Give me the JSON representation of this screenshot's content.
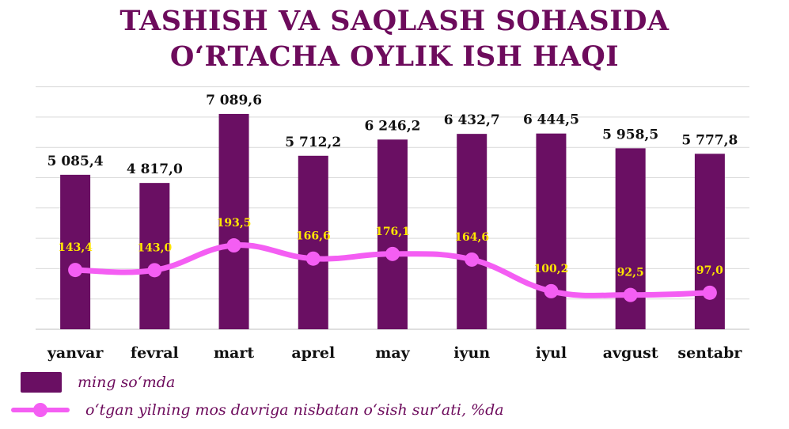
{
  "title_line1": "TASHISH VA SAQLASH SOHASIDA",
  "title_line2": "O‘RTACHA OYLIK ISH HAQI",
  "chart_data": {
    "type": "bar",
    "categories": [
      "yanvar",
      "fevral",
      "mart",
      "aprel",
      "may",
      "iyun",
      "iyul",
      "avgust",
      "sentabr"
    ],
    "series": [
      {
        "name": "ming so‘mda",
        "type": "bar",
        "values": [
          5085.4,
          4817.0,
          7089.6,
          5712.2,
          6246.2,
          6432.7,
          6444.5,
          5958.5,
          5777.8
        ],
        "labels": [
          "5 085,4",
          "4 817,0",
          "7 089,6",
          "5 712,2",
          "6 246,2",
          "6 432,7",
          "6 444,5",
          "5 958,5",
          "5 777,8"
        ],
        "color": "#6a0f63"
      },
      {
        "name": "o‘tgan yilning mos davriga nisbatan o‘sish sur’ati, %da",
        "type": "line",
        "values": [
          143.4,
          143.0,
          193.5,
          166.6,
          176.1,
          164.6,
          100.2,
          92.5,
          97.0
        ],
        "labels": [
          "143,4",
          "143,0",
          "193,5",
          "166,6",
          "176,1",
          "164,6",
          "100,2",
          "92,5",
          "97,0"
        ],
        "color": "#f45ef3"
      }
    ],
    "grid": true,
    "legend_position": "bottom-left",
    "colors": {
      "bar": "#6a0f63",
      "line": "#f45ef3",
      "line_label": "#ffe600",
      "title": "#6d0b5c"
    }
  }
}
